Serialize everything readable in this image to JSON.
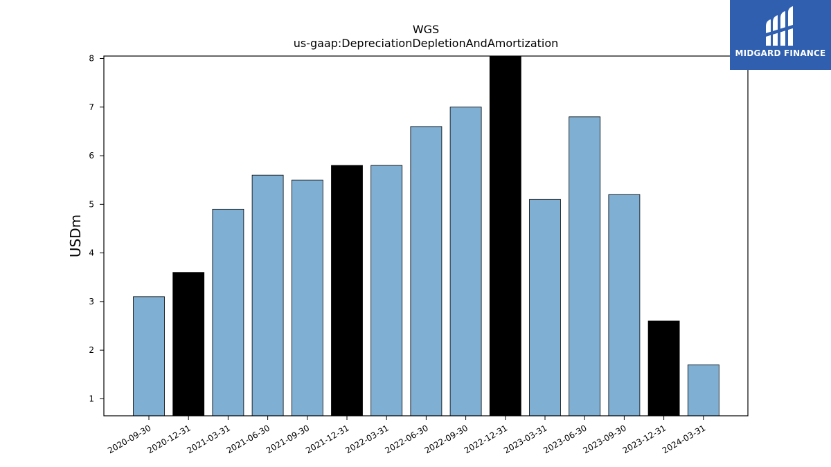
{
  "chart_data": {
    "type": "bar",
    "title": "WGS",
    "subtitle": "us-gaap:DepreciationDepletionAndAmortization",
    "xlabel": "",
    "ylabel": "USDm",
    "ylim": [
      0.65,
      8.05
    ],
    "yticks": [
      1,
      2,
      3,
      4,
      5,
      6,
      7,
      8
    ],
    "grid": false,
    "categories": [
      "2020-09-30",
      "2020-12-31",
      "2021-03-31",
      "2021-06-30",
      "2021-09-30",
      "2021-12-31",
      "2022-03-31",
      "2022-06-30",
      "2022-09-30",
      "2022-12-31",
      "2023-03-31",
      "2023-06-30",
      "2023-09-30",
      "2023-12-31",
      "2024-03-31"
    ],
    "values": [
      3.1,
      3.6,
      4.9,
      5.6,
      5.5,
      5.8,
      5.8,
      6.6,
      7.0,
      8.1,
      5.1,
      6.8,
      5.2,
      2.6,
      1.7
    ],
    "quarter_end_q4": [
      false,
      true,
      false,
      false,
      false,
      true,
      false,
      false,
      false,
      true,
      false,
      false,
      false,
      true,
      false
    ],
    "colors": {
      "quarter": "#7fafd3",
      "annual_q4": "#000000",
      "edge": "#000000"
    }
  },
  "logo": {
    "text": "MIDGARD FINANCE",
    "icon": "midgard-logo-icon",
    "background": "#2f5fae"
  }
}
